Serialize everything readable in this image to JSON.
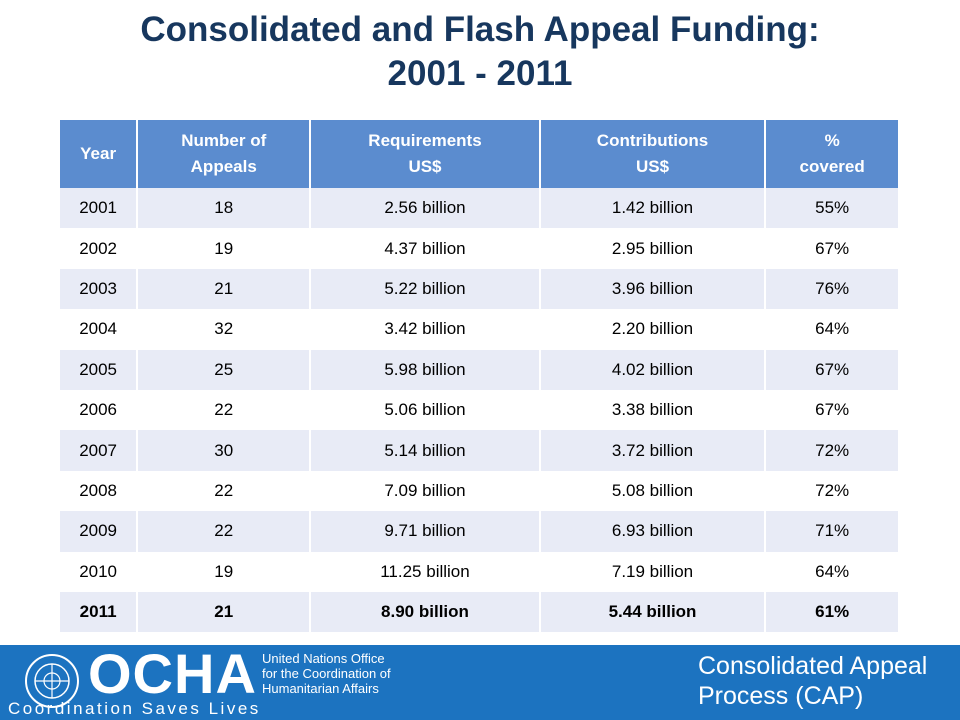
{
  "header": {
    "title": "Consolidated and Flash Appeal Funding:\n2001 - 2011"
  },
  "table": {
    "columns": [
      "Year",
      "Number of\nAppeals",
      "Requirements\nUS$",
      "Contributions\nUS$",
      "%\ncovered"
    ],
    "rows": [
      [
        "2001",
        "18",
        "2.56 billion",
        "1.42 billion",
        "55%"
      ],
      [
        "2002",
        "19",
        "4.37 billion",
        "2.95 billion",
        "67%"
      ],
      [
        "2003",
        "21",
        "5.22 billion",
        "3.96 billion",
        "76%"
      ],
      [
        "2004",
        "32",
        "3.42 billion",
        "2.20 billion",
        "64%"
      ],
      [
        "2005",
        "25",
        "5.98 billion",
        "4.02 billion",
        "67%"
      ],
      [
        "2006",
        "22",
        "5.06 billion",
        "3.38 billion",
        "67%"
      ],
      [
        "2007",
        "30",
        "5.14 billion",
        "3.72 billion",
        "72%"
      ],
      [
        "2008",
        "22",
        "7.09 billion",
        "5.08 billion",
        "72%"
      ],
      [
        "2009",
        "22",
        "9.71 billion",
        "6.93 billion",
        "71%"
      ],
      [
        "2010",
        "19",
        "11.25 billion",
        "7.19 billion",
        "64%"
      ],
      [
        "2011",
        "21",
        "8.90 billion",
        "5.44 billion",
        "61%"
      ]
    ]
  },
  "footer": {
    "logo": "OCHA",
    "office": "United Nations Office\nfor the Coordination of\nHumanitarian Affairs",
    "slogan": "Coordination Saves Lives",
    "program": "Consolidated Appeal\nProcess (CAP)"
  }
}
